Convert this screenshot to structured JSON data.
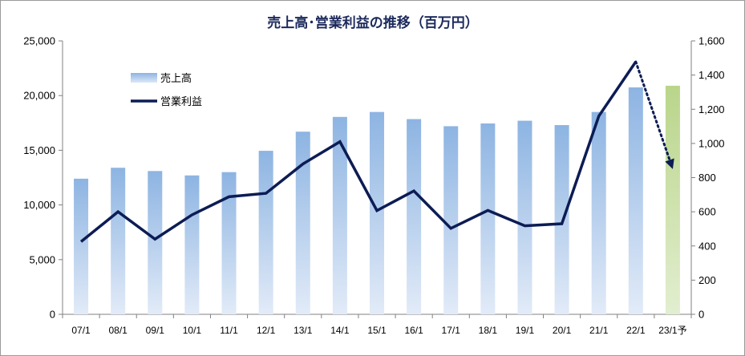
{
  "chart_data": {
    "type": "bar",
    "title": "売上高･営業利益の推移（百万円）",
    "categories": [
      "07/1",
      "08/1",
      "09/1",
      "10/1",
      "11/1",
      "12/1",
      "13/1",
      "14/1",
      "15/1",
      "16/1",
      "17/1",
      "18/1",
      "19/1",
      "20/1",
      "21/1",
      "22/1",
      "23/1予"
    ],
    "series": [
      {
        "name": "売上高",
        "type": "bar",
        "axis": "left",
        "values": [
          12400,
          13400,
          13100,
          12700,
          13000,
          14950,
          16700,
          18050,
          18500,
          17850,
          17200,
          17450,
          17700,
          17300,
          18500,
          20750,
          20900
        ]
      },
      {
        "name": "営業利益",
        "type": "line",
        "axis": "right",
        "values": [
          425,
          600,
          440,
          582,
          688,
          708,
          880,
          1010,
          607,
          722,
          503,
          608,
          518,
          530,
          1160,
          1478,
          850
        ]
      }
    ],
    "y_left": {
      "min": 0,
      "max": 25000,
      "ticks": [
        "0",
        "5,000",
        "10,000",
        "15,000",
        "20,000",
        "25,000"
      ]
    },
    "y_right": {
      "min": 0,
      "max": 1600,
      "ticks": [
        "0",
        "200",
        "400",
        "600",
        "800",
        "1,000",
        "1,200",
        "1,400",
        "1,600"
      ]
    },
    "grid": false,
    "legend": "top-left",
    "forecast": {
      "category": "23/1予",
      "bar_color": "#c4dc96",
      "line_style": "dotted-arrow"
    },
    "colors": {
      "bar_top": "#8db4e2",
      "bar_bottom": "#dce7f7",
      "line": "#0c1c54",
      "axis": "#808080"
    }
  }
}
